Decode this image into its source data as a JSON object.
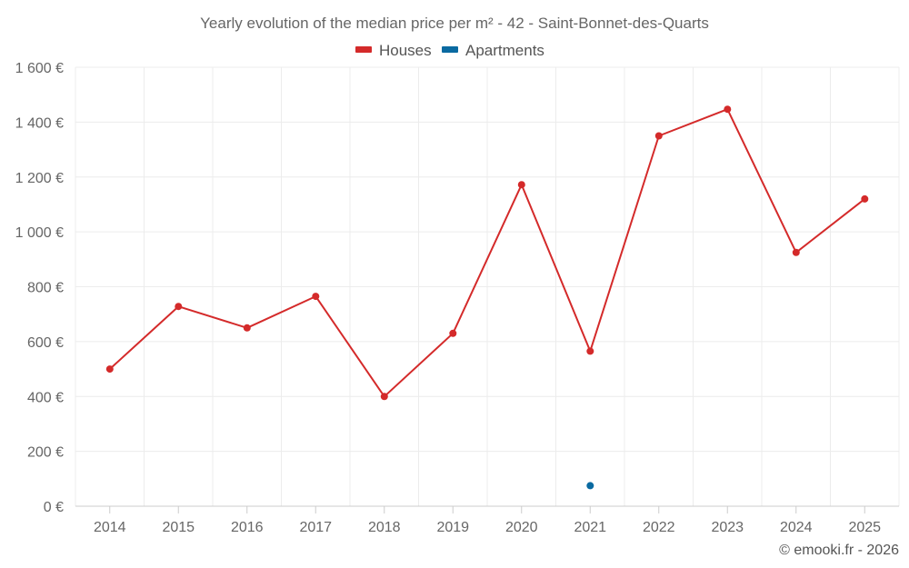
{
  "chart_data": {
    "type": "line",
    "title": "Yearly evolution of the median price per m² - 42 - Saint-Bonnet-des-Quarts",
    "categories": [
      "2014",
      "2015",
      "2016",
      "2017",
      "2018",
      "2019",
      "2020",
      "2021",
      "2022",
      "2023",
      "2024",
      "2025"
    ],
    "ylim": [
      0,
      1600
    ],
    "yticks": [
      0,
      200,
      400,
      600,
      800,
      1000,
      1200,
      1400,
      1600
    ],
    "ytick_labels": [
      "0 €",
      "200 €",
      "400 €",
      "600 €",
      "800 €",
      "1 000 €",
      "1 200 €",
      "1 400 €",
      "1 600 €"
    ],
    "xlabel": "",
    "ylabel": "",
    "grid": true,
    "legend_position": "top-center",
    "series": [
      {
        "name": "Houses",
        "color": "#d42a2a",
        "values": [
          500,
          728,
          650,
          765,
          400,
          630,
          1172,
          565,
          1350,
          1447,
          925,
          1120
        ]
      },
      {
        "name": "Apartments",
        "color": "#0a6aa1",
        "values": [
          null,
          null,
          null,
          null,
          null,
          null,
          null,
          75,
          null,
          null,
          null,
          null
        ]
      }
    ]
  },
  "credit": "© emooki.fr - 2026"
}
